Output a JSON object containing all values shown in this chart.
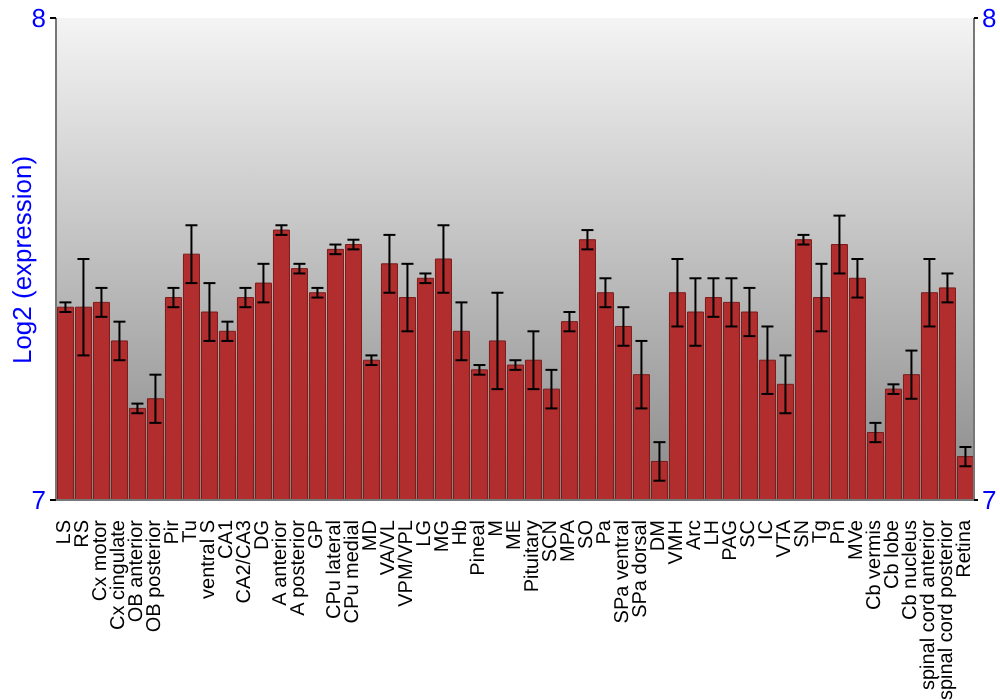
{
  "chart_data": {
    "type": "bar",
    "ylabel": "Log2 (expression)",
    "categories": [
      "LS",
      "RS",
      "Cx motor",
      "Cx cingulate",
      "OB anterior",
      "OB posterior",
      "Pir",
      "Tu",
      "ventral S",
      "CA1",
      "CA2/CA3",
      "DG",
      "A anterior",
      "A posterior",
      "GP",
      "CPu lateral",
      "CPu medial",
      "MD",
      "VA/VL",
      "VPM/VPL",
      "LG",
      "MG",
      "Hb",
      "Pineal",
      "M",
      "ME",
      "Pituitary",
      "SCN",
      "MPA",
      "SO",
      "Pa",
      "SPa ventral",
      "SPa dorsal",
      "DM",
      "VMH",
      "Arc",
      "LH",
      "PAG",
      "SC",
      "IC",
      "VTA",
      "SN",
      "Tg",
      "Pn",
      "MVe",
      "Cb vermis",
      "Cb lobe",
      "Cb nucleus",
      "spinal cord anterior",
      "spinal cord posterior",
      "Retina"
    ],
    "values": [
      7.4,
      7.4,
      7.41,
      7.33,
      7.19,
      7.21,
      7.42,
      7.51,
      7.39,
      7.35,
      7.42,
      7.45,
      7.56,
      7.48,
      7.43,
      7.52,
      7.53,
      7.29,
      7.49,
      7.42,
      7.46,
      7.5,
      7.35,
      7.27,
      7.33,
      7.28,
      7.29,
      7.23,
      7.37,
      7.54,
      7.43,
      7.36,
      7.26,
      7.08,
      7.43,
      7.39,
      7.42,
      7.41,
      7.39,
      7.29,
      7.24,
      7.54,
      7.42,
      7.53,
      7.46,
      7.14,
      7.23,
      7.26,
      7.43,
      7.44,
      7.09
    ],
    "errors": [
      0.01,
      0.1,
      0.03,
      0.04,
      0.01,
      0.05,
      0.02,
      0.06,
      0.06,
      0.02,
      0.02,
      0.04,
      0.01,
      0.01,
      0.01,
      0.01,
      0.01,
      0.01,
      0.06,
      0.07,
      0.01,
      0.07,
      0.06,
      0.01,
      0.1,
      0.01,
      0.06,
      0.04,
      0.02,
      0.02,
      0.03,
      0.04,
      0.07,
      0.04,
      0.07,
      0.07,
      0.04,
      0.05,
      0.05,
      0.07,
      0.06,
      0.01,
      0.07,
      0.06,
      0.04,
      0.02,
      0.01,
      0.05,
      0.07,
      0.03,
      0.02
    ],
    "color": "#b22e2e",
    "ylim": [
      7,
      8
    ],
    "yticks": [
      7,
      8
    ],
    "y2lim": [
      7,
      8
    ],
    "y2ticks": [
      7,
      8
    ]
  }
}
